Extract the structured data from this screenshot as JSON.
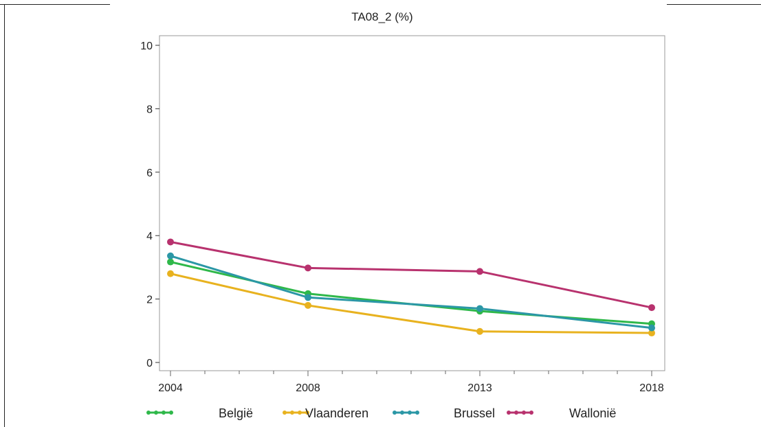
{
  "chart_data": {
    "type": "line",
    "title": "TA08_2  (%)",
    "xlabel": "",
    "ylabel": "",
    "x": [
      "2004",
      "2008",
      "2013",
      "2018"
    ],
    "x_values": [
      2004,
      2008,
      2013,
      2018
    ],
    "xlim": [
      2004,
      2018
    ],
    "ylim": [
      0,
      10
    ],
    "yticks": [
      0,
      2,
      4,
      6,
      8,
      10
    ],
    "grid": false,
    "legend_position": "bottom",
    "series": [
      {
        "name": "België",
        "color": "#2fb84a",
        "values": [
          3.17,
          2.17,
          1.62,
          1.22
        ]
      },
      {
        "name": "Vlaanderen",
        "color": "#e8b21f",
        "values": [
          2.8,
          1.8,
          0.98,
          0.93
        ]
      },
      {
        "name": "Brussel",
        "color": "#2b97a6",
        "values": [
          3.36,
          2.05,
          1.7,
          1.09
        ]
      },
      {
        "name": "Wallonië",
        "color": "#b8326e",
        "values": [
          3.8,
          2.98,
          2.87,
          1.73
        ]
      }
    ]
  }
}
